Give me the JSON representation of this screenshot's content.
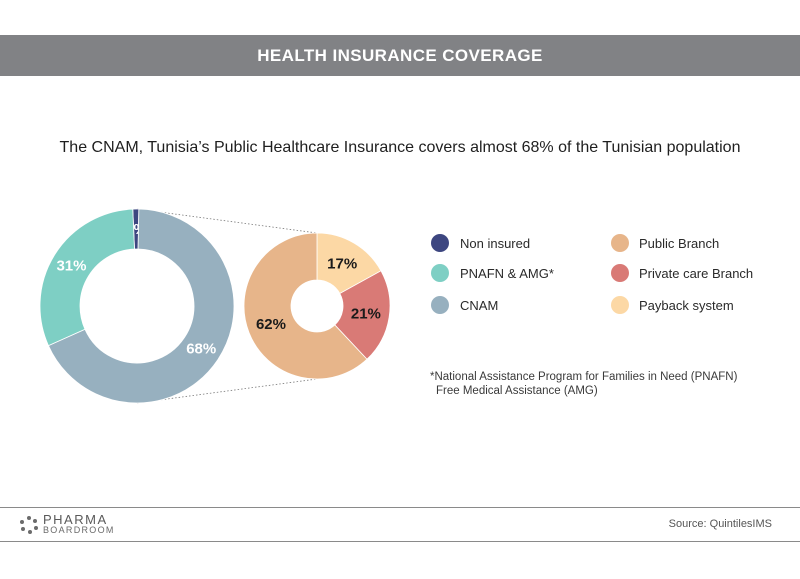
{
  "header": {
    "title": "HEALTH INSURANCE COVERAGE"
  },
  "subtitle": "The CNAM, Tunisia’s Public Healthcare Insurance covers almost 68% of the Tunisian population",
  "chart_data": [
    {
      "type": "pie",
      "variant": "donut",
      "slices": [
        {
          "name": "Non insured",
          "value": 1,
          "label": "1%",
          "color": "#3d4680",
          "label_color": "#ffffff"
        },
        {
          "name": "CNAM",
          "value": 68,
          "label": "68%",
          "color": "#97b0bf",
          "label_color": "#ffffff"
        },
        {
          "name": "PNAFN & AMG*",
          "value": 31,
          "label": "31%",
          "color": "#7ecfc4",
          "label_color": "#ffffff"
        }
      ]
    },
    {
      "type": "pie",
      "variant": "donut",
      "breakdown_of": "CNAM",
      "slices": [
        {
          "name": "Payback system",
          "value": 17,
          "label": "17%",
          "color": "#fcd8a5",
          "label_color": "#1a1a1a"
        },
        {
          "name": "Private care Branch",
          "value": 21,
          "label": "21%",
          "color": "#d97a76",
          "label_color": "#1a1a1a"
        },
        {
          "name": "Public Branch",
          "value": 62,
          "label": "62%",
          "color": "#e7b58a",
          "label_color": "#1a1a1a"
        }
      ]
    }
  ],
  "legend": {
    "left": [
      {
        "label": "Non insured",
        "color": "#3d4680"
      },
      {
        "label": "PNAFN & AMG*",
        "color": "#7ecfc4"
      },
      {
        "label": "CNAM",
        "color": "#97b0bf"
      }
    ],
    "right": [
      {
        "label": "Public Branch",
        "color": "#e7b58a"
      },
      {
        "label": "Private care Branch",
        "color": "#d97a76"
      },
      {
        "label": "Payback system",
        "color": "#fcd8a5"
      }
    ]
  },
  "footnote": {
    "line1": "*National Assistance Program for Families in Need (PNAFN)",
    "line2": "Free Medical Assistance (AMG)"
  },
  "footer": {
    "logo_word1": "PHARMA",
    "logo_word2": "BOARDROOM",
    "source": "Source: QuintilesIMS"
  }
}
